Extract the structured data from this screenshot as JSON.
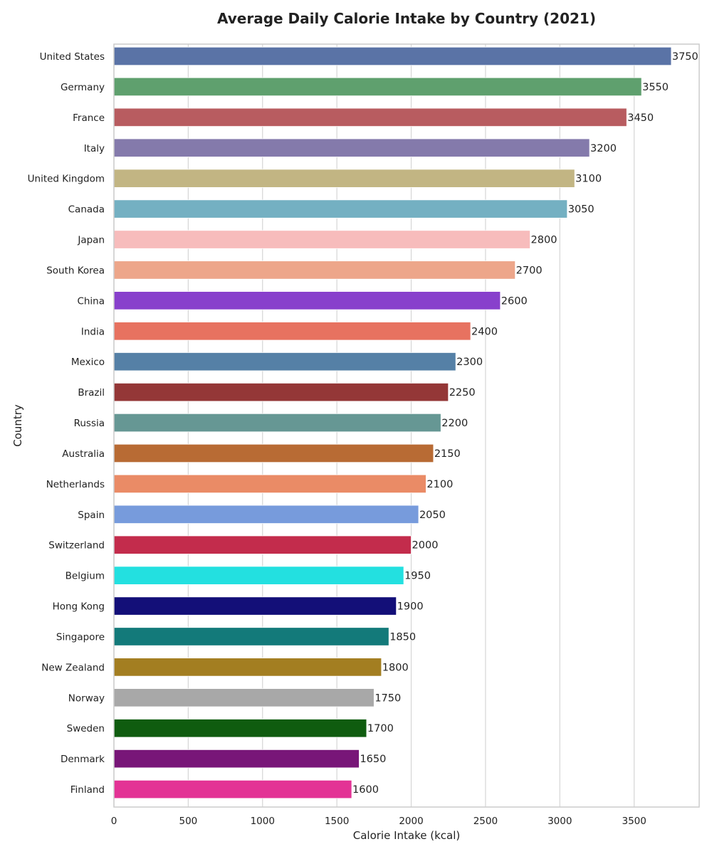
{
  "chart_data": {
    "type": "bar",
    "orientation": "horizontal",
    "title": "Average Daily Calorie Intake by Country (2021)",
    "xlabel": "Calorie Intake (kcal)",
    "ylabel": "Country",
    "xlim": [
      0,
      3937.5
    ],
    "xticks": [
      0,
      500,
      1000,
      1500,
      2000,
      2500,
      3000,
      3500
    ],
    "grid": "vertical",
    "legend": "none",
    "categories": [
      "United States",
      "Germany",
      "France",
      "Italy",
      "United Kingdom",
      "Canada",
      "Japan",
      "South Korea",
      "China",
      "India",
      "Mexico",
      "Brazil",
      "Russia",
      "Australia",
      "Netherlands",
      "Spain",
      "Switzerland",
      "Belgium",
      "Hong Kong",
      "Singapore",
      "New Zealand",
      "Norway",
      "Sweden",
      "Denmark",
      "Finland"
    ],
    "values": [
      3750,
      3550,
      3450,
      3200,
      3100,
      3050,
      2800,
      2700,
      2600,
      2400,
      2300,
      2250,
      2200,
      2150,
      2100,
      2050,
      2000,
      1950,
      1900,
      1850,
      1800,
      1750,
      1700,
      1650,
      1600
    ],
    "colors": [
      "#5a73a6",
      "#5fa06e",
      "#b85c60",
      "#847aab",
      "#c2b583",
      "#74b0c2",
      "#f7bcbc",
      "#eda68a",
      "#8840cc",
      "#e77260",
      "#5580a6",
      "#943737",
      "#669794",
      "#b86b34",
      "#ea8b66",
      "#779bdc",
      "#c32c4c",
      "#23e0e0",
      "#130f78",
      "#137a7a",
      "#a37e21",
      "#a8a8a8",
      "#0f5c0f",
      "#781678",
      "#e33395"
    ]
  }
}
